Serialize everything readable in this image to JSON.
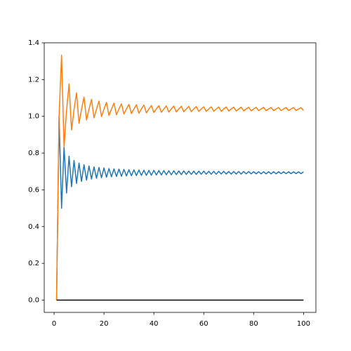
{
  "chart_data": {
    "type": "line",
    "x": [
      1,
      2,
      3,
      4,
      5,
      6,
      7,
      8,
      9,
      10,
      11,
      12,
      13,
      14,
      15,
      16,
      17,
      18,
      19,
      20,
      21,
      22,
      23,
      24,
      25,
      26,
      27,
      28,
      29,
      30,
      31,
      32,
      33,
      34,
      35,
      36,
      37,
      38,
      39,
      40,
      41,
      42,
      43,
      44,
      45,
      46,
      47,
      48,
      49,
      50,
      51,
      52,
      53,
      54,
      55,
      56,
      57,
      58,
      59,
      60,
      61,
      62,
      63,
      64,
      65,
      66,
      67,
      68,
      69,
      70,
      71,
      72,
      73,
      74,
      75,
      76,
      77,
      78,
      79,
      80,
      81,
      82,
      83,
      84,
      85,
      86,
      87,
      88,
      89,
      90,
      91,
      92,
      93,
      94,
      95,
      96,
      97,
      98,
      99,
      100
    ],
    "series": [
      {
        "color": "#1f77b4",
        "values": [
          0,
          1,
          0.5,
          0.833,
          0.583,
          0.783,
          0.617,
          0.76,
          0.635,
          0.746,
          0.646,
          0.737,
          0.653,
          0.73,
          0.659,
          0.725,
          0.663,
          0.722,
          0.666,
          0.719,
          0.669,
          0.716,
          0.671,
          0.714,
          0.673,
          0.713,
          0.674,
          0.711,
          0.676,
          0.71,
          0.677,
          0.709,
          0.678,
          0.708,
          0.679,
          0.707,
          0.679,
          0.706,
          0.68,
          0.706,
          0.681,
          0.705,
          0.681,
          0.705,
          0.682,
          0.704,
          0.682,
          0.704,
          0.683,
          0.703,
          0.683,
          0.703,
          0.684,
          0.702,
          0.684,
          0.702,
          0.684,
          0.702,
          0.685,
          0.702,
          0.685,
          0.701,
          0.685,
          0.701,
          0.685,
          0.701,
          0.686,
          0.701,
          0.686,
          0.7,
          0.686,
          0.7,
          0.686,
          0.7,
          0.686,
          0.7,
          0.687,
          0.7,
          0.687,
          0.699,
          0.687,
          0.699,
          0.687,
          0.699,
          0.687,
          0.699,
          0.687,
          0.699,
          0.687,
          0.699,
          0.688,
          0.699,
          0.688,
          0.698,
          0.688,
          0.698,
          0.688,
          0.698,
          0.688,
          0.698
        ]
      },
      {
        "color": "#ff7f0e",
        "values": [
          0,
          1,
          1.333,
          0.833,
          1.033,
          1.176,
          0.926,
          1.037,
          1.128,
          0.962,
          1.038,
          1.105,
          0.98,
          1.039,
          1.092,
          0.992,
          1.039,
          1.083,
          0.999,
          1.039,
          1.076,
          1.005,
          1.039,
          1.072,
          1.009,
          1.04,
          1.068,
          1.013,
          1.04,
          1.065,
          1.015,
          1.04,
          1.063,
          1.017,
          1.04,
          1.061,
          1.019,
          1.04,
          1.059,
          1.021,
          1.04,
          1.058,
          1.022,
          1.04,
          1.057,
          1.023,
          1.04,
          1.056,
          1.024,
          1.04,
          1.055,
          1.025,
          1.04,
          1.054,
          1.026,
          1.04,
          1.053,
          1.027,
          1.04,
          1.052,
          1.027,
          1.04,
          1.052,
          1.028,
          1.04,
          1.051,
          1.028,
          1.04,
          1.051,
          1.029,
          1.04,
          1.05,
          1.029,
          1.04,
          1.05,
          1.03,
          1.04,
          1.049,
          1.03,
          1.04,
          1.049,
          1.031,
          1.04,
          1.049,
          1.031,
          1.04,
          1.048,
          1.031,
          1.04,
          1.048,
          1.031,
          1.04,
          1.048,
          1.032,
          1.04,
          1.048,
          1.032,
          1.04,
          1.047,
          1.032
        ]
      },
      {
        "color": "#000000",
        "values": [
          0,
          0,
          0,
          0,
          0,
          0,
          0,
          0,
          0,
          0,
          0,
          0,
          0,
          0,
          0,
          0,
          0,
          0,
          0,
          0,
          0,
          0,
          0,
          0,
          0,
          0,
          0,
          0,
          0,
          0,
          0,
          0,
          0,
          0,
          0,
          0,
          0,
          0,
          0,
          0,
          0,
          0,
          0,
          0,
          0,
          0,
          0,
          0,
          0,
          0,
          0,
          0,
          0,
          0,
          0,
          0,
          0,
          0,
          0,
          0,
          0,
          0,
          0,
          0,
          0,
          0,
          0,
          0,
          0,
          0,
          0,
          0,
          0,
          0,
          0,
          0,
          0,
          0,
          0,
          0,
          0,
          0,
          0,
          0,
          0,
          0,
          0,
          0,
          0,
          0,
          0,
          0,
          0,
          0,
          0,
          0,
          0,
          0,
          0,
          0
        ]
      }
    ],
    "xlim": [
      -3.95,
      104.95
    ],
    "xticks": [
      0,
      20,
      40,
      60,
      80,
      100
    ],
    "ylim": [
      -0.0667,
      1.4
    ],
    "yticks": [
      {
        "value": 0,
        "label": "0.0"
      },
      0.2,
      0.4,
      0.6,
      0.8,
      {
        "value": 1,
        "label": "1.0"
      },
      1.2,
      1.4
    ]
  }
}
